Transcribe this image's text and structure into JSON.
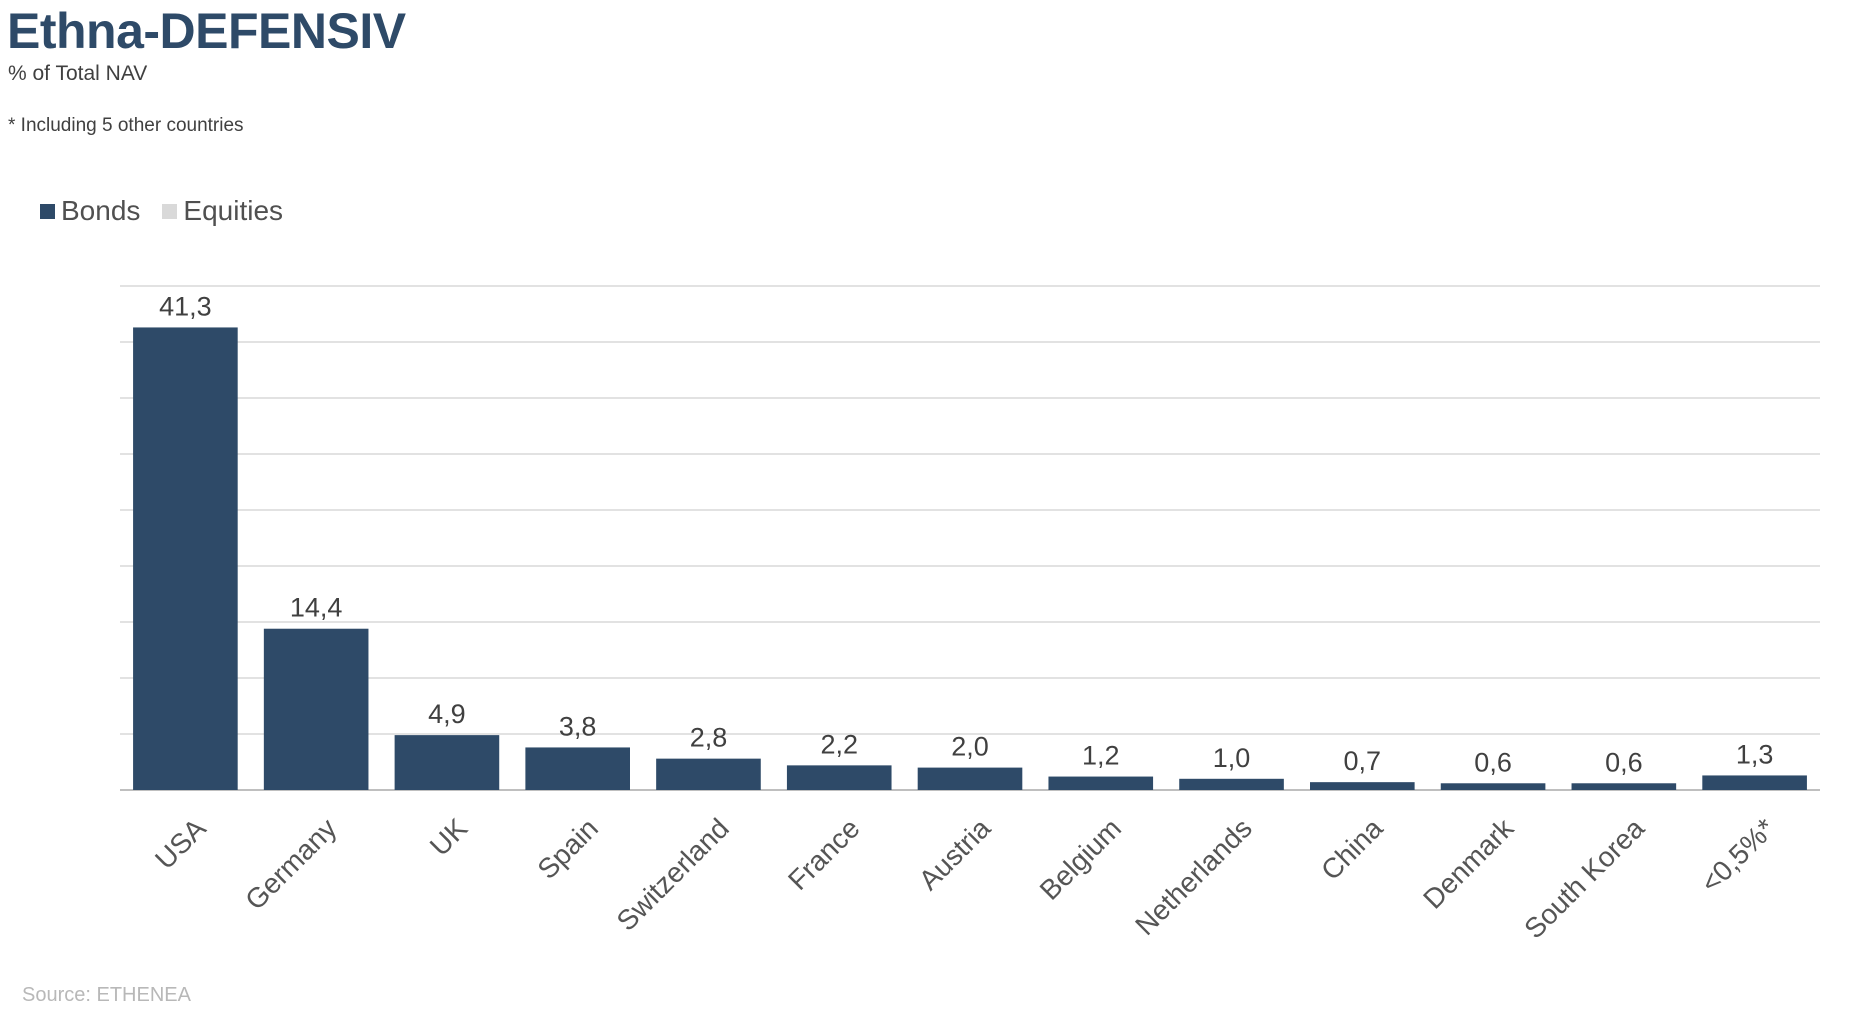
{
  "header": {
    "title": "Ethna-DEFENSIV",
    "subtitle": "% of Total NAV",
    "footnote": "* Including 5 other countries"
  },
  "legend": [
    {
      "label": "Bonds",
      "color": "#2e4a68"
    },
    {
      "label": "Equities",
      "color": "#d9d9d9"
    }
  ],
  "source": "Source: ETHENEA",
  "chart_data": {
    "type": "bar",
    "categories": [
      "USA",
      "Germany",
      "UK",
      "Spain",
      "Switzerland",
      "France",
      "Austria",
      "Belgium",
      "Netherlands",
      "China",
      "Denmark",
      "South Korea",
      "<0,5%*"
    ],
    "series": [
      {
        "name": "Bonds",
        "values": [
          41.3,
          14.4,
          4.9,
          3.8,
          2.8,
          2.2,
          2.0,
          1.2,
          1.0,
          0.7,
          0.6,
          0.6,
          1.3
        ],
        "color": "#2e4a68"
      },
      {
        "name": "Equities",
        "values": [
          0,
          0,
          0,
          0,
          0,
          0,
          0,
          0,
          0,
          0,
          0,
          0,
          0
        ],
        "color": "#d9d9d9"
      }
    ],
    "data_labels": [
      "41,3",
      "14,4",
      "4,9",
      "3,8",
      "2,8",
      "2,2",
      "2,0",
      "1,2",
      "1,0",
      "0,7",
      "0,6",
      "0,6",
      "1,3"
    ],
    "ylim": [
      0,
      45
    ],
    "grid": true,
    "legend_position": "top-left",
    "gridline_color": "#d0d0d0",
    "axis_color": "#bfbfbf",
    "label_color": "#404040"
  }
}
